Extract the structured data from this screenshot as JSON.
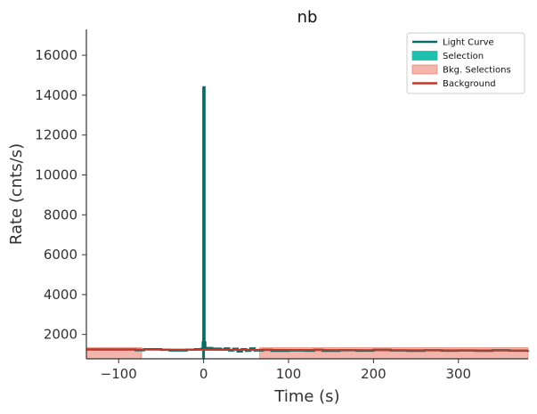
{
  "chart_data": {
    "type": "line",
    "title": "nb",
    "xlabel": "Time (s)",
    "ylabel": "Rate (cnts/s)",
    "xlim": [
      -138,
      382
    ],
    "ylim": [
      780,
      17300
    ],
    "xticks": [
      -100,
      0,
      100,
      200,
      300
    ],
    "xtick_labels": [
      "−100",
      "0",
      "100",
      "200",
      "300"
    ],
    "yticks": [
      2000,
      4000,
      6000,
      8000,
      10000,
      12000,
      14000,
      16000
    ],
    "ytick_labels": [
      "2000",
      "4000",
      "6000",
      "8000",
      "10000",
      "12000",
      "14000",
      "16000"
    ],
    "grid": false,
    "legend_position": "top-right",
    "series": [
      {
        "name": "Light Curve",
        "kind": "step-line",
        "color": "#0b6b66",
        "x": [
          -138,
          -80,
          -70,
          -50,
          -40,
          -20,
          -10,
          -2,
          -1,
          0,
          1,
          2,
          10,
          20,
          25,
          30,
          35,
          40,
          45,
          50,
          55,
          60,
          70,
          80,
          100,
          120,
          130,
          140,
          160,
          180,
          200,
          220,
          240,
          260,
          280,
          300,
          320,
          340,
          360,
          382
        ],
        "values": [
          1250,
          1210,
          1260,
          1230,
          1200,
          1240,
          1260,
          1300,
          1600,
          14400,
          1600,
          1320,
          1290,
          1250,
          1300,
          1200,
          1280,
          1150,
          1260,
          1180,
          1300,
          1200,
          1230,
          1180,
          1200,
          1190,
          1230,
          1180,
          1210,
          1190,
          1230,
          1200,
          1180,
          1210,
          1190,
          1200,
          1180,
          1210,
          1190,
          1200
        ]
      },
      {
        "name": "Selection",
        "kind": "span",
        "color": "#20c0b0",
        "range": [
          -1.5,
          2
        ]
      },
      {
        "name": "Bkg. Selections",
        "kind": "spans",
        "color": "#f5b4aa",
        "ranges": [
          [
            -138,
            -73
          ],
          [
            66,
            382
          ]
        ]
      },
      {
        "name": "Background",
        "kind": "line",
        "color": "#c0392b",
        "x": [
          -138,
          382
        ],
        "values": [
          1250,
          1195
        ]
      }
    ]
  }
}
